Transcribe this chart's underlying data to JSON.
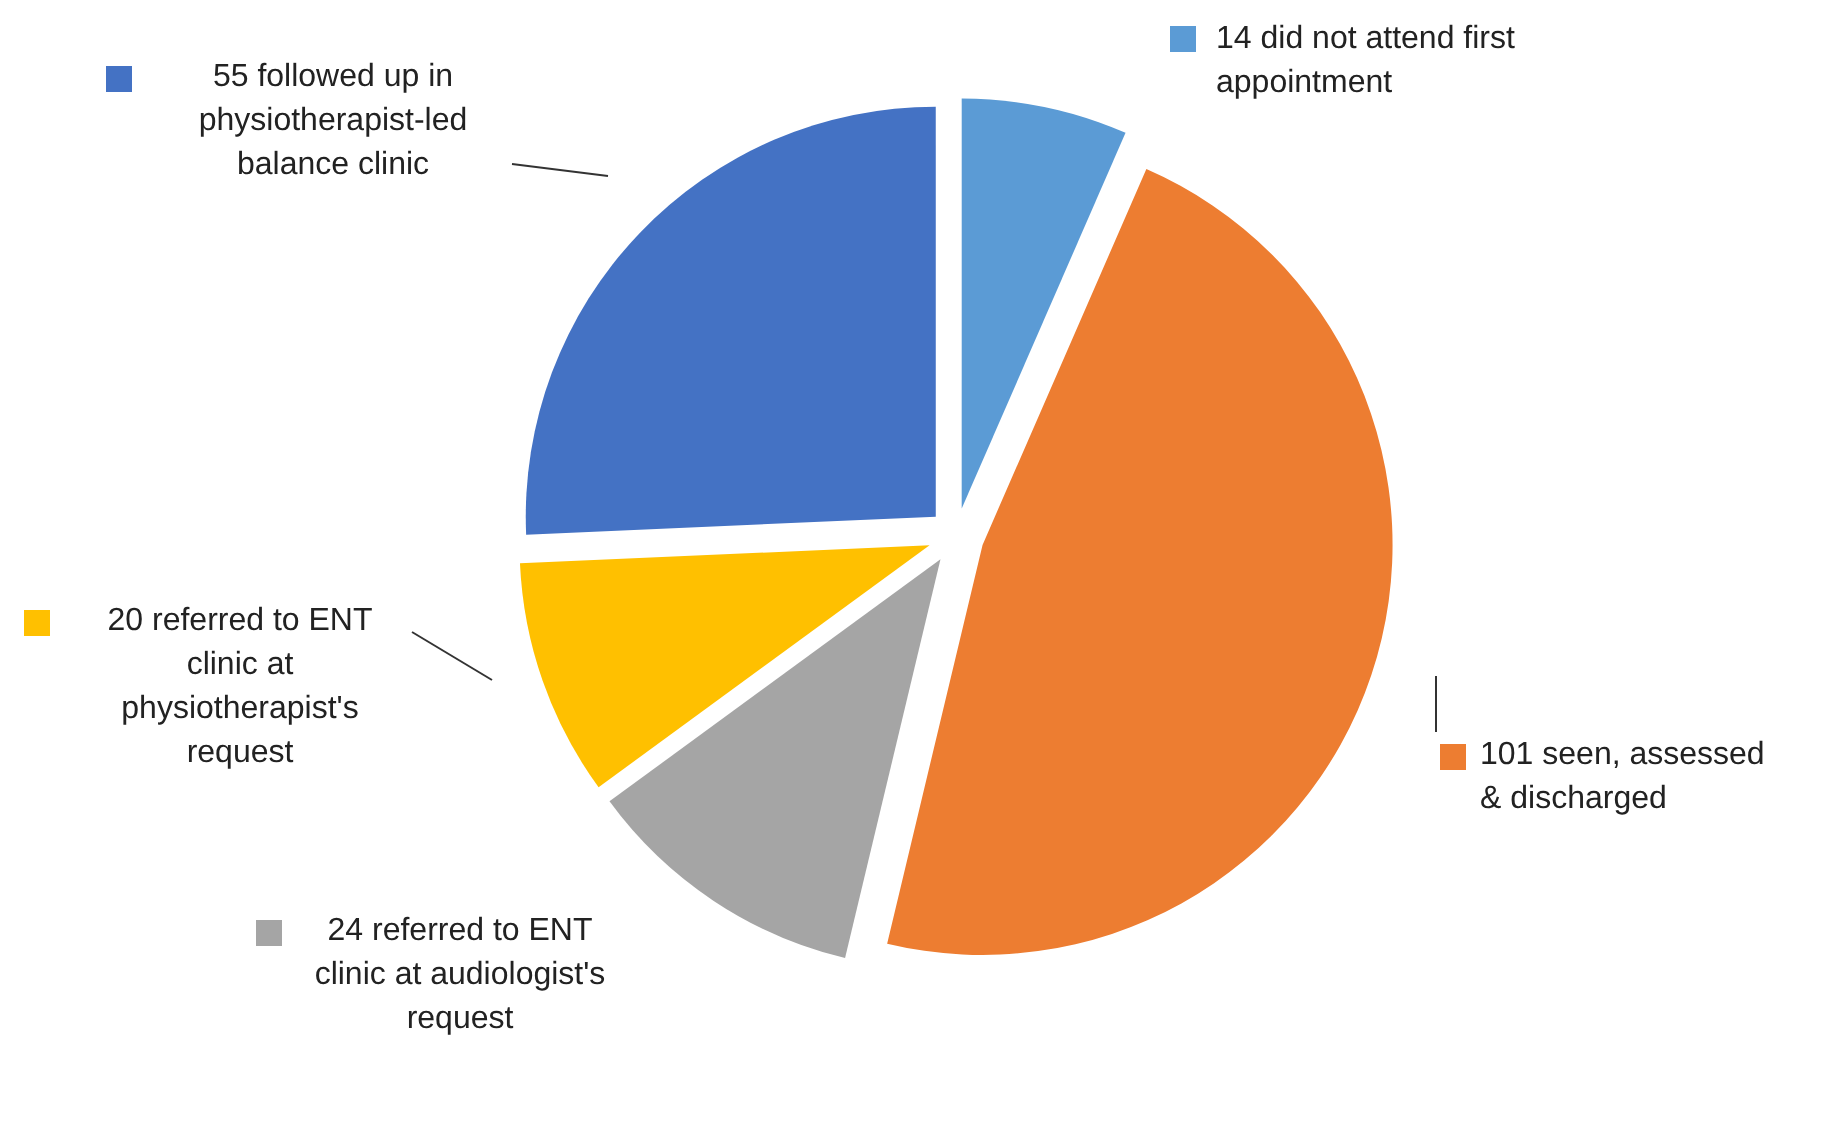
{
  "chart_data": {
    "type": "pie",
    "categories": [
      "14 did not attend first appointment",
      "101 seen, assessed & discharged",
      "24 referred to ENT clinic at audiologist's request",
      "20 referred to ENT clinic at physiotherapist's request",
      "55 followed up in physiotherapist-led balance clinic"
    ],
    "values": [
      14,
      101,
      24,
      20,
      55
    ],
    "colors": [
      "#5b9bd5",
      "#ed7d31",
      "#a5a5a5",
      "#ffc000",
      "#4472c4"
    ],
    "legend": "left"
  }
}
